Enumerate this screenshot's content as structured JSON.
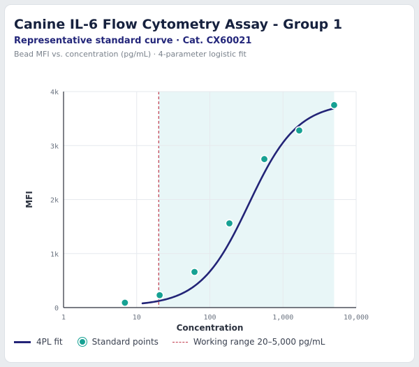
{
  "header": {
    "title": "Canine IL-6 Flow Cytometry Assay - Group 1",
    "subtitle": "Representative standard curve · Cat. CX60021",
    "caption": "Bead MFI vs. concentration (pg/mL) · 4-parameter logistic fit"
  },
  "legend": {
    "fit_label": "4PL fit",
    "points_label": "Standard points",
    "range_label": "Working range 20–5,000 pg/mL"
  },
  "colors": {
    "fit": "#232477",
    "points": "#16a193",
    "range_line": "#c0394b",
    "range_fill": "#e8f6f7"
  },
  "chart_data": {
    "type": "scatter",
    "xlabel": "Concentration",
    "ylabel": "MFI",
    "x_scale": "log",
    "xlim": [
      1,
      10000
    ],
    "ylim": [
      0,
      4000
    ],
    "x_ticks": [
      1,
      10,
      100,
      1000,
      10000
    ],
    "x_tick_labels": [
      "1",
      "10",
      "100",
      "1,000",
      "10,000"
    ],
    "y_ticks": [
      0,
      1000,
      2000,
      3000,
      4000
    ],
    "y_tick_labels": [
      "0",
      "1k",
      "2k",
      "3k",
      "4k"
    ],
    "grid": true,
    "series": [
      {
        "name": "Standard points",
        "x": [
          6.9,
          20.6,
          61.7,
          185,
          556,
          1667,
          5000
        ],
        "y": [
          90,
          230,
          660,
          1560,
          2750,
          3280,
          3750
        ]
      }
    ],
    "fit": {
      "name": "4PL fit",
      "model": "4PL",
      "bottom": 30,
      "top": 3800,
      "ec50": 340,
      "hill": 1.3,
      "x_range": [
        12,
        5000
      ]
    },
    "working_range": {
      "label": "Working range 20–5,000 pg/mL",
      "x": [
        20,
        5000
      ]
    }
  }
}
